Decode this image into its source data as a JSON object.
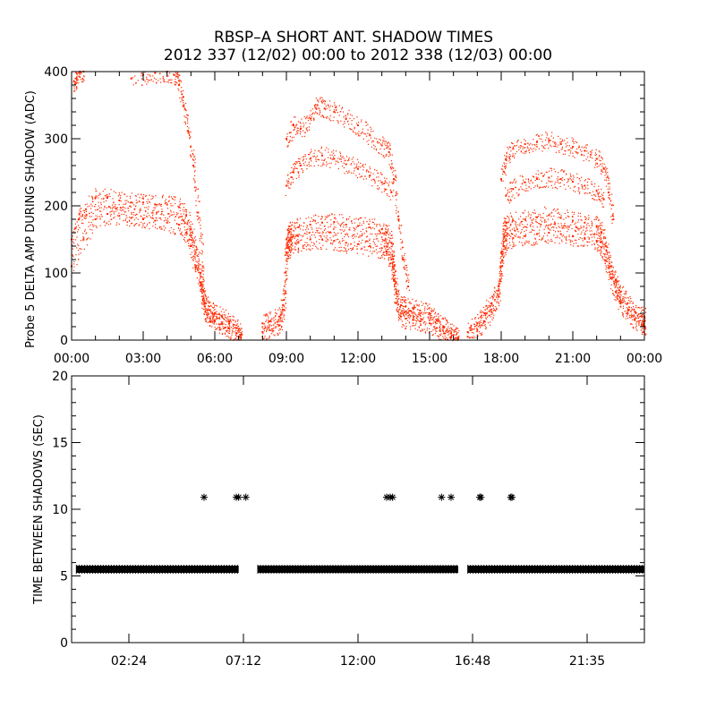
{
  "figure": {
    "title_line1": "RBSP–A SHORT ANT. SHADOW TIMES",
    "title_line2": "2012 337 (12/02) 00:00 to 2012 338 (12/03) 00:00"
  },
  "colors": {
    "shadow_amp": "#ff2a00",
    "shadow_time": "#000000",
    "axes": "#000000",
    "background": "#ffffff"
  },
  "chart_data": [
    {
      "type": "scatter",
      "ylabel": "Probe 5 DELTA AMP DURING SHADOW (ADC)",
      "xlim": [
        0,
        24
      ],
      "ylim": [
        0,
        400
      ],
      "x_ticks": [
        {
          "value": 0,
          "label": "00:00"
        },
        {
          "value": 3,
          "label": "03:00"
        },
        {
          "value": 6,
          "label": "06:00"
        },
        {
          "value": 9,
          "label": "09:00"
        },
        {
          "value": 12,
          "label": "12:00"
        },
        {
          "value": 15,
          "label": "15:00"
        },
        {
          "value": 18,
          "label": "18:00"
        },
        {
          "value": 21,
          "label": "21:00"
        },
        {
          "value": 24,
          "label": "00:00"
        }
      ],
      "y_ticks": [
        {
          "value": 0,
          "label": "0"
        },
        {
          "value": 100,
          "label": "100"
        },
        {
          "value": 200,
          "label": "200"
        },
        {
          "value": 300,
          "label": "300"
        },
        {
          "value": 400,
          "label": "400"
        }
      ],
      "grid": false,
      "series": [
        {
          "x": [
            0.0,
            0.3,
            0.6,
            1.0,
            1.5,
            2.0,
            2.5,
            3.0,
            3.5,
            4.0,
            4.5,
            4.8,
            5.0,
            5.2,
            5.4,
            5.5,
            5.6,
            5.8,
            6.0,
            6.3,
            6.6,
            6.9,
            7.1
          ],
          "y": [
            150,
            180,
            195,
            212,
            212,
            208,
            205,
            205,
            202,
            202,
            198,
            185,
            165,
            130,
            100,
            75,
            55,
            45,
            40,
            35,
            28,
            18,
            8
          ]
        },
        {
          "x": [
            0.0,
            0.5,
            1.0,
            1.5,
            2.0,
            2.5,
            3.0,
            3.5,
            4.0,
            4.5,
            4.8,
            5.0,
            5.2,
            5.4,
            5.5,
            5.6,
            5.8,
            6.0,
            6.3,
            6.6,
            6.9,
            7.1
          ],
          "y": [
            110,
            150,
            180,
            188,
            185,
            182,
            180,
            178,
            175,
            172,
            160,
            140,
            110,
            85,
            60,
            42,
            32,
            28,
            24,
            18,
            10,
            4
          ]
        },
        {
          "x": [
            2.5,
            3.0,
            3.5,
            4.0,
            4.3,
            4.5,
            4.7,
            4.9,
            5.1,
            5.3,
            5.5
          ],
          "y": [
            390,
            395,
            398,
            400,
            395,
            380,
            350,
            310,
            260,
            190,
            110
          ]
        },
        {
          "x": [
            0.1,
            0.2,
            0.35,
            0.5
          ],
          "y": [
            385,
            390,
            400,
            400
          ]
        },
        {
          "x": [
            8.0,
            8.3,
            8.7,
            8.9,
            9.0,
            9.1,
            9.2,
            9.5,
            10.0,
            10.5,
            11.0,
            11.5,
            12.0,
            12.5,
            13.0,
            13.2,
            13.4,
            13.5,
            13.6,
            13.8,
            14.0,
            14.3,
            14.6,
            15.0,
            15.3,
            15.6,
            15.9,
            16.2
          ],
          "y": [
            25,
            28,
            35,
            60,
            150,
            160,
            165,
            168,
            172,
            175,
            176,
            172,
            170,
            168,
            165,
            160,
            145,
            110,
            70,
            52,
            50,
            48,
            44,
            40,
            30,
            20,
            10,
            4
          ]
        },
        {
          "x": [
            8.0,
            8.3,
            8.7,
            8.9,
            9.0,
            9.1,
            9.2,
            9.5,
            10.0,
            10.5,
            11.0,
            11.5,
            12.0,
            12.5,
            13.0,
            13.2,
            13.4,
            13.5,
            13.6,
            13.8,
            14.0,
            14.3,
            14.6,
            15.0,
            15.3,
            15.6,
            15.9,
            16.2
          ],
          "y": [
            12,
            15,
            22,
            45,
            130,
            138,
            142,
            145,
            150,
            150,
            148,
            145,
            143,
            140,
            137,
            132,
            120,
            90,
            55,
            35,
            32,
            30,
            28,
            25,
            18,
            10,
            4,
            2
          ]
        },
        {
          "x": [
            9.0,
            9.3,
            9.6,
            10.0,
            10.3,
            10.6,
            11.0,
            11.5,
            12.0,
            12.5,
            13.0,
            13.3,
            13.5,
            13.7,
            13.9,
            14.1
          ],
          "y": [
            300,
            320,
            315,
            330,
            350,
            345,
            340,
            330,
            320,
            305,
            290,
            280,
            240,
            180,
            120,
            80
          ]
        },
        {
          "x": [
            9.0,
            9.3,
            9.6,
            10.0,
            10.5,
            11.0,
            11.5,
            12.0,
            12.5,
            13.0,
            13.4
          ],
          "y": [
            230,
            250,
            260,
            270,
            275,
            270,
            262,
            255,
            245,
            235,
            220
          ]
        },
        {
          "x": [
            16.6,
            17.0,
            17.3,
            17.6,
            17.9,
            18.0,
            18.1,
            18.2,
            18.5,
            19.0,
            19.5,
            20.0,
            20.5,
            21.0,
            21.5,
            22.0,
            22.2,
            22.4,
            22.6,
            22.8,
            23.0,
            23.3,
            23.6,
            23.9,
            24.0
          ],
          "y": [
            12,
            25,
            40,
            55,
            80,
            130,
            165,
            175,
            178,
            180,
            183,
            186,
            182,
            178,
            175,
            170,
            160,
            140,
            110,
            90,
            72,
            55,
            42,
            35,
            35
          ]
        },
        {
          "x": [
            16.6,
            17.0,
            17.3,
            17.6,
            17.9,
            18.0,
            18.1,
            18.2,
            18.5,
            19.0,
            19.5,
            20.0,
            20.5,
            21.0,
            21.5,
            22.0,
            22.2,
            22.4,
            22.6,
            22.8,
            23.0,
            23.3,
            23.6,
            23.9,
            24.0
          ],
          "y": [
            5,
            15,
            28,
            42,
            65,
            110,
            140,
            148,
            152,
            155,
            158,
            160,
            158,
            155,
            152,
            148,
            138,
            118,
            92,
            72,
            56,
            40,
            30,
            22,
            20
          ]
        },
        {
          "x": [
            18.0,
            18.2,
            18.5,
            19.0,
            19.5,
            20.0,
            20.5,
            21.0,
            21.5,
            22.0,
            22.3,
            22.5,
            22.7
          ],
          "y": [
            240,
            270,
            285,
            292,
            295,
            298,
            292,
            288,
            282,
            270,
            255,
            220,
            180
          ]
        },
        {
          "x": [
            18.2,
            18.5,
            19.0,
            19.5,
            20.0,
            20.5,
            21.0,
            21.5,
            22.0,
            22.3
          ],
          "y": [
            215,
            225,
            235,
            240,
            242,
            240,
            236,
            230,
            222,
            210
          ]
        }
      ]
    },
    {
      "type": "scatter",
      "ylabel": "TIME BETWEEN SHADOWS (SEC)",
      "xlim": [
        0,
        24
      ],
      "ylim": [
        0,
        20
      ],
      "x_ticks": [
        {
          "value": 2.4,
          "label": "02:24"
        },
        {
          "value": 7.2,
          "label": "07:12"
        },
        {
          "value": 12.0,
          "label": "12:00"
        },
        {
          "value": 16.8,
          "label": "16:48"
        },
        {
          "value": 21.6,
          "label": "21:35"
        }
      ],
      "y_ticks": [
        {
          "value": 0,
          "label": "0"
        },
        {
          "value": 5,
          "label": "5"
        },
        {
          "value": 10,
          "label": "10"
        },
        {
          "value": 15,
          "label": "15"
        },
        {
          "value": 20,
          "label": "20"
        }
      ],
      "grid": false,
      "marker": "asterisk",
      "bands": [
        {
          "x_start": 0.2,
          "x_end": 7.0,
          "y": 5.5
        },
        {
          "x_start": 7.8,
          "x_end": 16.2,
          "y": 5.5
        },
        {
          "x_start": 16.6,
          "x_end": 24.0,
          "y": 5.5
        }
      ],
      "points": {
        "x": [
          5.55,
          6.9,
          7.0,
          7.3,
          13.2,
          13.35,
          13.45,
          15.5,
          15.9,
          17.1,
          17.15,
          18.4,
          18.45
        ],
        "y": [
          10.9,
          10.9,
          10.9,
          10.9,
          10.9,
          10.9,
          10.9,
          10.9,
          10.9,
          10.9,
          10.9,
          10.9,
          10.9
        ]
      }
    }
  ]
}
